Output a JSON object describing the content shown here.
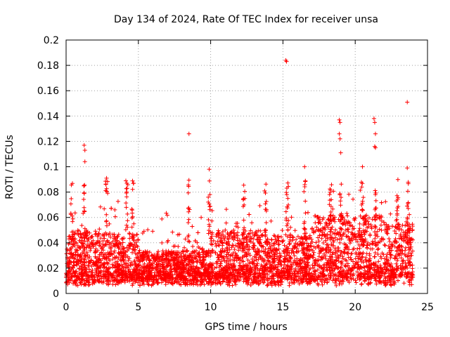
{
  "chart_data": {
    "type": "scatter",
    "title": "Day 134 of 2024, Rate Of TEC Index for receiver unsa",
    "xlabel": "GPS time / hours",
    "ylabel": "ROTI / TECUs",
    "xlim": [
      0,
      25
    ],
    "ylim": [
      0,
      0.2
    ],
    "xticks": [
      0,
      5,
      10,
      15,
      20,
      25
    ],
    "xtick_labels": [
      "0",
      "5",
      "10",
      "15",
      "20",
      "25"
    ],
    "yticks": [
      0,
      0.02,
      0.04,
      0.06,
      0.08,
      0.1,
      0.12,
      0.14,
      0.16,
      0.18,
      0.2
    ],
    "ytick_labels": [
      "0",
      "0.02",
      "0.04",
      "0.06",
      "0.08",
      "0.1",
      "0.12",
      "0.14",
      "0.16",
      "0.18",
      "0.2"
    ],
    "grid": true,
    "marker": "plus",
    "marker_color": "#ff0000",
    "data_range_hours": [
      0,
      24
    ],
    "notable_points": [
      {
        "x": 1.25,
        "y": 0.117
      },
      {
        "x": 1.3,
        "y": 0.113
      },
      {
        "x": 1.3,
        "y": 0.104
      },
      {
        "x": 8.5,
        "y": 0.126
      },
      {
        "x": 15.2,
        "y": 0.184
      },
      {
        "x": 15.25,
        "y": 0.183
      },
      {
        "x": 18.9,
        "y": 0.137
      },
      {
        "x": 18.95,
        "y": 0.135
      },
      {
        "x": 18.9,
        "y": 0.126
      },
      {
        "x": 18.95,
        "y": 0.122
      },
      {
        "x": 19.0,
        "y": 0.111
      },
      {
        "x": 21.3,
        "y": 0.138
      },
      {
        "x": 21.35,
        "y": 0.135
      },
      {
        "x": 21.4,
        "y": 0.126
      },
      {
        "x": 21.35,
        "y": 0.116
      },
      {
        "x": 21.4,
        "y": 0.115
      },
      {
        "x": 23.6,
        "y": 0.151
      },
      {
        "x": 23.6,
        "y": 0.099
      },
      {
        "x": 9.9,
        "y": 0.098
      },
      {
        "x": 16.5,
        "y": 0.1
      },
      {
        "x": 20.5,
        "y": 0.1
      },
      {
        "x": 2.8,
        "y": 0.091
      },
      {
        "x": 4.2,
        "y": 0.087
      }
    ]
  }
}
